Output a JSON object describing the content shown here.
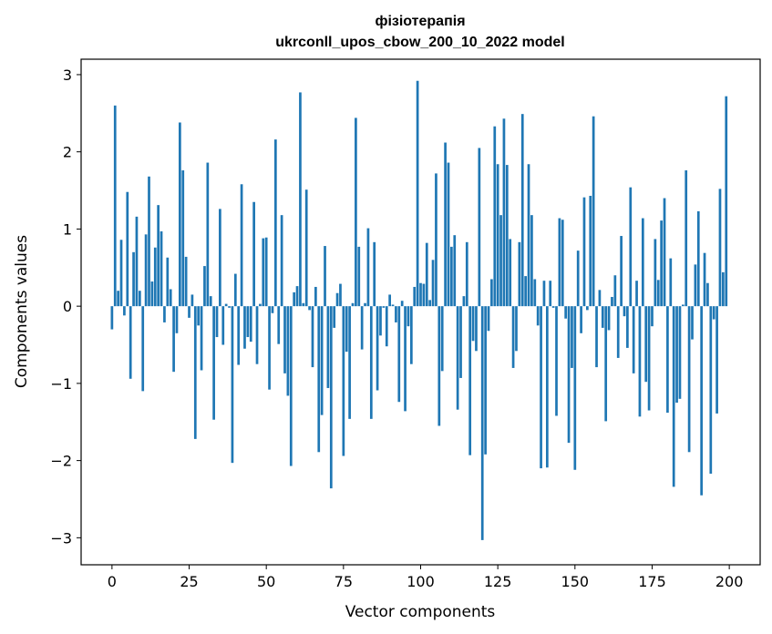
{
  "chart_data": {
    "type": "bar",
    "title_line1": "фізіотерапія",
    "title_line2": "ukrconll_upos_cbow_200_10_2022 model",
    "xlabel": "Vector components",
    "ylabel": "Components values",
    "xlim": [
      -10,
      210
    ],
    "ylim": [
      -3.35,
      3.2
    ],
    "xticks": [
      0,
      25,
      50,
      75,
      100,
      125,
      150,
      175,
      200
    ],
    "yticks": [
      -3,
      -2,
      -1,
      0,
      1,
      2,
      3
    ],
    "xtick_labels": [
      "0",
      "25",
      "50",
      "75",
      "100",
      "125",
      "150",
      "175",
      "200"
    ],
    "ytick_labels": [
      "−3",
      "−2",
      "−1",
      "0",
      "1",
      "2",
      "3"
    ],
    "bar_color": "#1f77b4",
    "grid": false,
    "x": [
      0,
      1,
      2,
      3,
      4,
      5,
      6,
      7,
      8,
      9,
      10,
      11,
      12,
      13,
      14,
      15,
      16,
      17,
      18,
      19,
      20,
      21,
      22,
      23,
      24,
      25,
      26,
      27,
      28,
      29,
      30,
      31,
      32,
      33,
      34,
      35,
      36,
      37,
      38,
      39,
      40,
      41,
      42,
      43,
      44,
      45,
      46,
      47,
      48,
      49,
      50,
      51,
      52,
      53,
      54,
      55,
      56,
      57,
      58,
      59,
      60,
      61,
      62,
      63,
      64,
      65,
      66,
      67,
      68,
      69,
      70,
      71,
      72,
      73,
      74,
      75,
      76,
      77,
      78,
      79,
      80,
      81,
      82,
      83,
      84,
      85,
      86,
      87,
      88,
      89,
      90,
      91,
      92,
      93,
      94,
      95,
      96,
      97,
      98,
      99,
      100,
      101,
      102,
      103,
      104,
      105,
      106,
      107,
      108,
      109,
      110,
      111,
      112,
      113,
      114,
      115,
      116,
      117,
      118,
      119,
      120,
      121,
      122,
      123,
      124,
      125,
      126,
      127,
      128,
      129,
      130,
      131,
      132,
      133,
      134,
      135,
      136,
      137,
      138,
      139,
      140,
      141,
      142,
      143,
      144,
      145,
      146,
      147,
      148,
      149,
      150,
      151,
      152,
      153,
      154,
      155,
      156,
      157,
      158,
      159,
      160,
      161,
      162,
      163,
      164,
      165,
      166,
      167,
      168,
      169,
      170,
      171,
      172,
      173,
      174,
      175,
      176,
      177,
      178,
      179,
      180,
      181,
      182,
      183,
      184,
      185,
      186,
      187,
      188,
      189,
      190,
      191,
      192,
      193,
      194,
      195,
      196,
      197,
      198,
      199
    ],
    "values": [
      -0.3,
      2.6,
      0.2,
      0.86,
      -0.12,
      1.48,
      -0.94,
      0.7,
      1.16,
      0.2,
      -1.1,
      0.93,
      1.68,
      0.32,
      0.76,
      1.31,
      0.97,
      -0.21,
      0.63,
      0.22,
      -0.85,
      -0.35,
      2.38,
      1.76,
      0.64,
      -0.15,
      0.15,
      -1.72,
      -0.25,
      -0.83,
      0.52,
      1.86,
      0.13,
      -1.47,
      -0.4,
      1.26,
      -0.5,
      0.03,
      -0.02,
      -2.03,
      0.42,
      -0.76,
      1.58,
      -0.55,
      -0.4,
      -0.46,
      1.35,
      -0.75,
      0.03,
      0.88,
      0.89,
      -1.08,
      -0.09,
      2.16,
      -0.49,
      1.18,
      -0.87,
      -1.16,
      -2.07,
      0.18,
      0.26,
      2.77,
      0.04,
      1.51,
      -0.05,
      -0.79,
      0.25,
      -1.89,
      -1.41,
      0.78,
      -1.06,
      -2.36,
      -0.28,
      0.17,
      0.29,
      -1.94,
      -0.59,
      -1.46,
      0.04,
      2.44,
      0.77,
      -0.56,
      0.04,
      1.01,
      -1.46,
      0.83,
      -1.09,
      -0.38,
      -0.02,
      -0.52,
      0.15,
      0.02,
      -0.21,
      -1.24,
      0.07,
      -1.36,
      -0.26,
      -0.75,
      0.25,
      2.92,
      0.3,
      0.29,
      0.82,
      0.08,
      0.6,
      1.72,
      -1.55,
      -0.84,
      2.12,
      1.86,
      0.77,
      0.92,
      -1.34,
      -0.93,
      0.13,
      0.83,
      -1.93,
      -0.45,
      -0.58,
      2.05,
      -3.03,
      -1.92,
      -0.32,
      0.35,
      2.33,
      1.84,
      1.18,
      2.43,
      1.83,
      0.87,
      -0.8,
      -0.58,
      0.83,
      2.49,
      0.39,
      1.84,
      1.18,
      0.35,
      -0.25,
      -2.1,
      0.33,
      -2.09,
      0.33,
      -0.02,
      -1.42,
      1.14,
      1.12,
      -0.16,
      -1.77,
      -0.8,
      -2.12,
      0.72,
      -0.35,
      1.41,
      -0.05,
      1.43,
      2.46,
      -0.79,
      0.21,
      -0.28,
      -1.49,
      -0.31,
      0.12,
      0.4,
      -0.67,
      0.91,
      -0.13,
      -0.54,
      1.54,
      -0.87,
      0.33,
      -1.43,
      1.14,
      -0.98,
      -1.35,
      -0.26,
      0.87,
      0.34,
      1.11,
      1.4,
      -1.38,
      0.62,
      -2.34,
      -1.25,
      -1.2,
      0.02,
      1.76,
      -1.89,
      -0.43,
      0.54,
      1.23,
      -2.45,
      0.69,
      0.3,
      -2.17,
      -0.17,
      -1.39,
      1.52,
      0.44,
      2.72
    ]
  }
}
